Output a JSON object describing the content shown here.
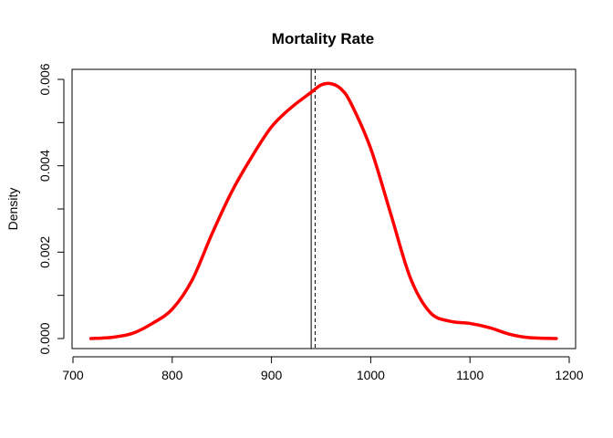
{
  "chart_data": {
    "type": "line",
    "title": "Mortality Rate",
    "xlabel": "",
    "ylabel": "Density",
    "xlim": [
      700,
      1200
    ],
    "ylim": [
      0,
      0.006
    ],
    "x_ticks": [
      700,
      800,
      900,
      1000,
      1100,
      1200
    ],
    "y_ticks": [
      0.0,
      0.002,
      0.004,
      0.006
    ],
    "x_tick_labels": [
      "700",
      "800",
      "900",
      "1000",
      "1100",
      "1200"
    ],
    "y_tick_labels": [
      "0.000",
      "0.002",
      "0.004",
      "0.006"
    ],
    "grid": false,
    "series": [
      {
        "color": "#ff0000",
        "x": [
          718,
          740,
          760,
          780,
          800,
          820,
          840,
          860,
          880,
          900,
          920,
          940,
          950,
          960,
          970,
          980,
          1000,
          1020,
          1040,
          1060,
          1080,
          1100,
          1120,
          1140,
          1160,
          1187
        ],
        "y": [
          0.0,
          3e-05,
          0.00012,
          0.00035,
          0.00068,
          0.00135,
          0.00242,
          0.0034,
          0.0042,
          0.0049,
          0.00535,
          0.0057,
          0.00587,
          0.0059,
          0.00578,
          0.00545,
          0.0044,
          0.0029,
          0.0014,
          0.0006,
          0.0004,
          0.00035,
          0.00025,
          0.0001,
          2e-05,
          0.0
        ]
      }
    ],
    "vlines": [
      {
        "x": 940,
        "style": "solid",
        "color": "#000000"
      },
      {
        "x": 944,
        "style": "dashed",
        "color": "#000000"
      }
    ]
  }
}
